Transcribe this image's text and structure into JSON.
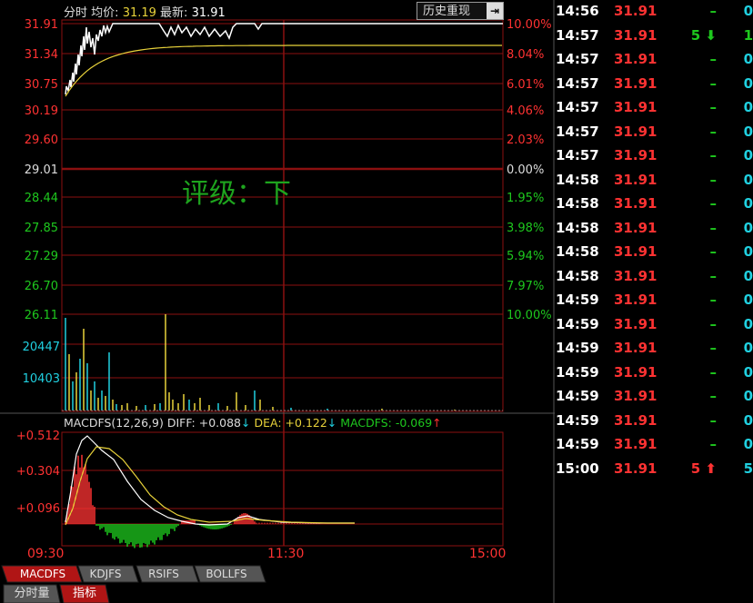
{
  "header": {
    "mode_label": "分时",
    "avg_label": "均价:",
    "avg_value": "31.19",
    "last_label": "最新:",
    "last_value": "31.91",
    "history_button": "历史重现",
    "history_icon": "arrow-into-box-icon"
  },
  "rating_text": "评级：下",
  "price_axis_left": [
    "31.91",
    "31.34",
    "30.75",
    "30.19",
    "29.60",
    "29.01",
    "28.44",
    "27.85",
    "27.29",
    "26.70",
    "26.11"
  ],
  "pct_axis_right": [
    "10.00%",
    "8.04%",
    "6.01%",
    "4.06%",
    "2.03%",
    "0.00%",
    "1.95%",
    "3.98%",
    "5.94%",
    "7.97%",
    "10.00%"
  ],
  "volume_axis": [
    "20447",
    "10403"
  ],
  "macd_header": {
    "name": "MACDFS(12,26,9)",
    "diff_label": "DIFF:",
    "diff_value": "+0.088",
    "diff_arrow": "↓",
    "dea_label": "DEA:",
    "dea_value": "+0.122",
    "dea_arrow": "↓",
    "macd_label": "MACDFS:",
    "macd_value": "-0.069",
    "macd_arrow": "↑"
  },
  "macd_axis": [
    "+0.512",
    "+0.304",
    "+0.096"
  ],
  "time_axis": [
    "09:30",
    "11:30",
    "15:00"
  ],
  "indicator_tabs": [
    "MACDFS",
    "KDJFS",
    "RSIFS",
    "BOLLFS"
  ],
  "bottom_tabs": [
    "分时量",
    "指标"
  ],
  "colors": {
    "up": "#ff3232",
    "down": "#1ec81e",
    "grid": "#8b1010",
    "avg_line": "#e8d23a",
    "volume": "#20d0e0"
  },
  "ticks": [
    {
      "time": "14:56",
      "price": "31.91",
      "vol": "–",
      "num": "0"
    },
    {
      "time": "14:57",
      "price": "31.91",
      "vol": "5",
      "dir": "down",
      "num": "1"
    },
    {
      "time": "14:57",
      "price": "31.91",
      "vol": "–",
      "num": "0"
    },
    {
      "time": "14:57",
      "price": "31.91",
      "vol": "–",
      "num": "0"
    },
    {
      "time": "14:57",
      "price": "31.91",
      "vol": "–",
      "num": "0"
    },
    {
      "time": "14:57",
      "price": "31.91",
      "vol": "–",
      "num": "0"
    },
    {
      "time": "14:57",
      "price": "31.91",
      "vol": "–",
      "num": "0"
    },
    {
      "time": "14:58",
      "price": "31.91",
      "vol": "–",
      "num": "0"
    },
    {
      "time": "14:58",
      "price": "31.91",
      "vol": "–",
      "num": "0"
    },
    {
      "time": "14:58",
      "price": "31.91",
      "vol": "–",
      "num": "0"
    },
    {
      "time": "14:58",
      "price": "31.91",
      "vol": "–",
      "num": "0"
    },
    {
      "time": "14:58",
      "price": "31.91",
      "vol": "–",
      "num": "0"
    },
    {
      "time": "14:59",
      "price": "31.91",
      "vol": "–",
      "num": "0"
    },
    {
      "time": "14:59",
      "price": "31.91",
      "vol": "–",
      "num": "0"
    },
    {
      "time": "14:59",
      "price": "31.91",
      "vol": "–",
      "num": "0"
    },
    {
      "time": "14:59",
      "price": "31.91",
      "vol": "–",
      "num": "0"
    },
    {
      "time": "14:59",
      "price": "31.91",
      "vol": "–",
      "num": "0"
    },
    {
      "time": "14:59",
      "price": "31.91",
      "vol": "–",
      "num": "0"
    },
    {
      "time": "14:59",
      "price": "31.91",
      "vol": "–",
      "num": "0"
    },
    {
      "time": "15:00",
      "price": "31.91",
      "vol": "5",
      "dir": "up",
      "num": "5"
    }
  ]
}
